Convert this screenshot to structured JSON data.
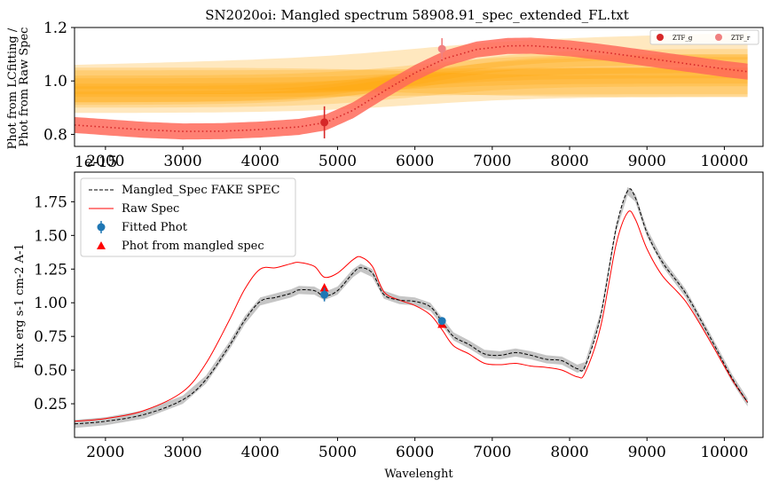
{
  "chart_data": [
    {
      "type": "line",
      "title": "SN2020oi: Mangled spectrum 58908.91_spec_extended_FL.txt",
      "xlabel": "",
      "ylabel": "Phot from LCfitting / Phot from Raw Spec",
      "offset_text": "1e-15",
      "xlim": [
        1600,
        10500
      ],
      "ylim": [
        0.755,
        1.2
      ],
      "yticks": [
        "0.8",
        "1.0",
        "1.2"
      ],
      "xticks": [
        "2000",
        "3000",
        "4000",
        "5000",
        "6000",
        "7000",
        "8000",
        "9000",
        "10000"
      ],
      "legend_position": "top-right",
      "legend": [
        "ZTF_g",
        "ZTF_r"
      ],
      "colors": {
        "band": "#ffa500",
        "mangle_band": "#ff6a5a",
        "dotted": "#d62728",
        "g_point": "#d62728",
        "r_point": "#f08080"
      },
      "ratio_curve": {
        "x": [
          1600,
          2000,
          2500,
          3000,
          3500,
          4000,
          4500,
          4850,
          5200,
          5600,
          6000,
          6400,
          6800,
          7200,
          7500,
          8000,
          8500,
          9000,
          9500,
          10000,
          10300
        ],
        "y": [
          0.835,
          0.827,
          0.817,
          0.811,
          0.812,
          0.818,
          0.828,
          0.845,
          0.89,
          0.962,
          1.03,
          1.085,
          1.118,
          1.131,
          1.132,
          1.122,
          1.105,
          1.085,
          1.065,
          1.045,
          1.035
        ]
      },
      "points": [
        {
          "name": "ZTF_g",
          "x": 4830,
          "y": 0.845,
          "yerr": 0.06
        },
        {
          "name": "ZTF_r",
          "x": 6350,
          "y": 1.12,
          "yerr": 0.04
        }
      ]
    },
    {
      "type": "line",
      "title": "",
      "xlabel": "Wavelenght",
      "ylabel": "Flux erg s-1 cm-2 A-1",
      "xlim": [
        1600,
        10500
      ],
      "ylim": [
        0.0,
        1.97
      ],
      "yticks": [
        "0.25",
        "0.50",
        "0.75",
        "1.00",
        "1.25",
        "1.50",
        "1.75"
      ],
      "xticks": [
        "2000",
        "3000",
        "4000",
        "5000",
        "6000",
        "7000",
        "8000",
        "9000",
        "10000"
      ],
      "legend_position": "top-left",
      "series": [
        {
          "name": "Mangled_Spec FAKE SPEC",
          "x": [
            1600,
            2000,
            2500,
            3000,
            3300,
            3600,
            3800,
            4000,
            4200,
            4400,
            4500,
            4700,
            4830,
            5000,
            5200,
            5300,
            5450,
            5600,
            5800,
            6000,
            6200,
            6350,
            6500,
            6700,
            6900,
            7100,
            7300,
            7500,
            7700,
            7900,
            8100,
            8200,
            8400,
            8600,
            8750,
            8850,
            9000,
            9200,
            9500,
            9800,
            10100,
            10300
          ],
          "y": [
            0.1,
            0.12,
            0.17,
            0.28,
            0.43,
            0.68,
            0.87,
            1.01,
            1.04,
            1.07,
            1.095,
            1.09,
            1.05,
            1.09,
            1.22,
            1.26,
            1.22,
            1.06,
            1.02,
            1.01,
            0.97,
            0.86,
            0.75,
            0.69,
            0.62,
            0.61,
            0.63,
            0.61,
            0.58,
            0.57,
            0.51,
            0.53,
            0.9,
            1.55,
            1.83,
            1.78,
            1.52,
            1.3,
            1.07,
            0.76,
            0.44,
            0.26
          ]
        },
        {
          "name": "Raw Spec",
          "x": [
            1600,
            2000,
            2500,
            3000,
            3300,
            3600,
            3800,
            4000,
            4200,
            4400,
            4500,
            4700,
            4830,
            5000,
            5200,
            5300,
            5450,
            5600,
            5800,
            6000,
            6200,
            6350,
            6500,
            6700,
            6900,
            7100,
            7300,
            7500,
            7700,
            7900,
            8100,
            8200,
            8400,
            8600,
            8750,
            8850,
            9000,
            9200,
            9500,
            9800,
            10100,
            10300
          ],
          "y": [
            0.12,
            0.14,
            0.2,
            0.34,
            0.55,
            0.87,
            1.1,
            1.25,
            1.26,
            1.29,
            1.3,
            1.27,
            1.19,
            1.22,
            1.32,
            1.34,
            1.27,
            1.08,
            1.02,
            0.98,
            0.91,
            0.8,
            0.68,
            0.62,
            0.55,
            0.54,
            0.55,
            0.53,
            0.52,
            0.5,
            0.45,
            0.48,
            0.82,
            1.43,
            1.67,
            1.62,
            1.4,
            1.2,
            1.01,
            0.73,
            0.43,
            0.26
          ]
        }
      ],
      "fitted_phot": [
        {
          "x": 4830,
          "y": 1.06,
          "yerr": 0.05
        },
        {
          "x": 6350,
          "y": 0.865,
          "yerr": 0.025
        }
      ],
      "phot_from_mangled_spec": [
        {
          "x": 4830,
          "y": 1.11
        },
        {
          "x": 6350,
          "y": 0.84
        }
      ],
      "legend": [
        "Mangled_Spec FAKE SPEC",
        "Raw Spec",
        "Fitted Phot",
        "Phot from mangled spec"
      ],
      "colors": {
        "mangled": "#000000",
        "raw": "#ff0000",
        "band": "#bbbbbb",
        "fitted": "#1f77b4",
        "triangle": "#ff0000"
      }
    }
  ]
}
